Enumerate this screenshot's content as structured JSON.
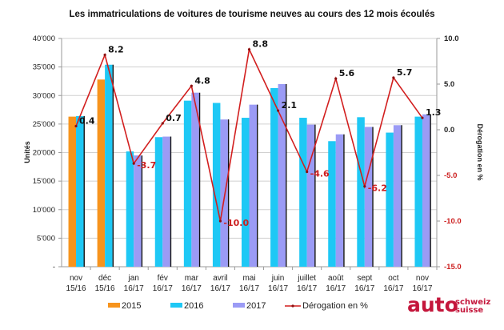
{
  "chart_data": {
    "type": "bar",
    "title": "Les immatriculations de voitures de tourisme neuves au cours des 12 mois écoulés",
    "xlabel": "",
    "ylabel": "Unités",
    "y2label": "Dérogation en %",
    "ylim": [
      0,
      40000
    ],
    "y2lim": [
      -15.0,
      10.0
    ],
    "grid": true,
    "legend_position": "bottom",
    "y_ticks": [
      "-",
      "5'000",
      "10'000",
      "15'000",
      "20'000",
      "25'000",
      "30'000",
      "35'000",
      "40'000"
    ],
    "y2_ticks": [
      "-15.0",
      "-10.0",
      "-5.0",
      "0.0",
      "5.0",
      "10.0"
    ],
    "categories": [
      [
        "nov",
        "15/16"
      ],
      [
        "déc",
        "15/16"
      ],
      [
        "jan",
        "16/17"
      ],
      [
        "fév",
        "16/17"
      ],
      [
        "mar",
        "16/17"
      ],
      [
        "avril",
        "16/17"
      ],
      [
        "mai",
        "16/17"
      ],
      [
        "juin",
        "16/17"
      ],
      [
        "juillet",
        "16/17"
      ],
      [
        "août",
        "16/17"
      ],
      [
        "sept",
        "16/17"
      ],
      [
        "oct",
        "16/17"
      ],
      [
        "nov",
        "16/17"
      ]
    ],
    "series": [
      {
        "name": "2015",
        "type": "bar",
        "color": "#f7941d",
        "values": [
          26300,
          32800,
          null,
          null,
          null,
          null,
          null,
          null,
          null,
          null,
          null,
          null,
          null
        ]
      },
      {
        "name": "2016",
        "type": "bar",
        "color": "#1ec8f5",
        "values": [
          26400,
          35400,
          20200,
          22700,
          29100,
          28700,
          26100,
          31300,
          26100,
          22000,
          26200,
          23500,
          26300
        ]
      },
      {
        "name": "2017",
        "type": "bar",
        "color": "#9b9bf5",
        "values": [
          null,
          null,
          19500,
          22800,
          30500,
          25800,
          28400,
          32000,
          24900,
          23200,
          24500,
          24800,
          26700
        ]
      },
      {
        "name": "Dérogation en %",
        "type": "line",
        "axis": "right",
        "color": "#d21f1f",
        "values": [
          0.4,
          8.2,
          -3.7,
          0.7,
          4.8,
          -10.0,
          8.8,
          2.1,
          -4.6,
          5.6,
          -6.2,
          5.7,
          1.3
        ],
        "labels": [
          "0.4",
          "8.2",
          "-3.7",
          "0.7",
          "4.8",
          "-10.0",
          "8.8",
          "2.1",
          "-4.6",
          "5.6",
          "-6.2",
          "5.7",
          "1.3"
        ]
      }
    ]
  },
  "logo": {
    "main": "auto",
    "line1": "schweiz",
    "line2": "suisse",
    "color": "#c4163b"
  }
}
